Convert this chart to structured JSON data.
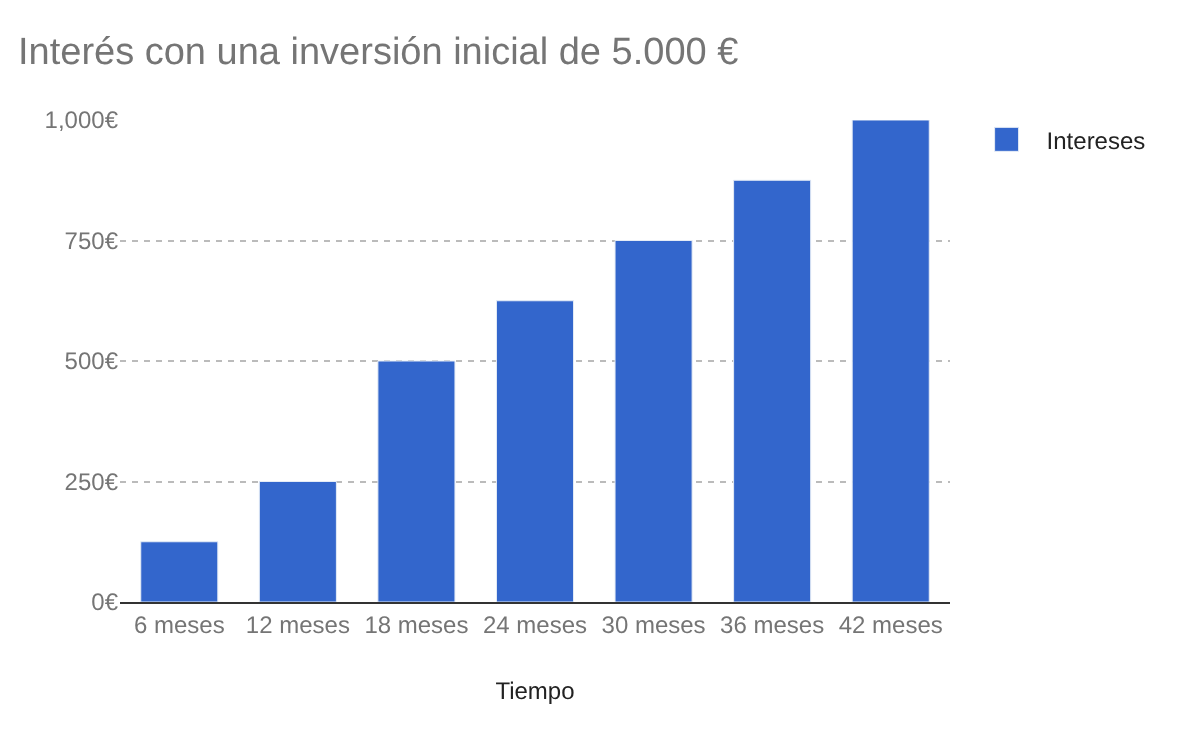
{
  "chart_data": {
    "type": "bar",
    "title": "Interés con una inversión inicial de 5.000 €",
    "xlabel": "Tiempo",
    "categories": [
      "6 meses",
      "12 meses",
      "18 meses",
      "24 meses",
      "30 meses",
      "36 meses",
      "42 meses"
    ],
    "series": [
      {
        "name": "Intereses",
        "color": "#3366cc",
        "values": [
          125,
          250,
          500,
          625,
          750,
          875,
          1000
        ]
      }
    ],
    "ylim": [
      0,
      1000
    ],
    "yticks": [
      {
        "value": 0,
        "label": "0€"
      },
      {
        "value": 250,
        "label": "250€"
      },
      {
        "value": 500,
        "label": "500€"
      },
      {
        "value": 750,
        "label": "750€"
      },
      {
        "value": 1000,
        "label": "1,000€"
      }
    ],
    "grid": "y",
    "legend": "top right"
  }
}
